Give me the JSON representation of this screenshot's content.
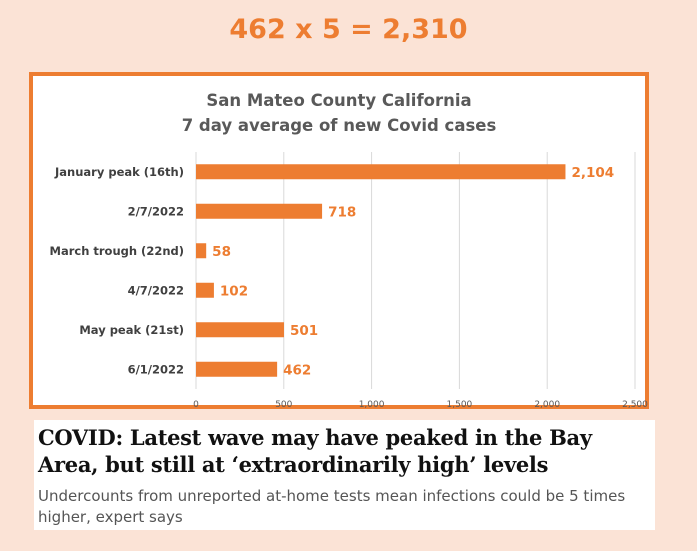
{
  "headline_equation": "462 x 5 = 2,310",
  "colors": {
    "accent": "#ed7d31",
    "background": "#fbe3d6",
    "grid": "#d9d9d9"
  },
  "chart_data": {
    "type": "bar",
    "orientation": "horizontal",
    "title": "San Mateo County California",
    "subtitle": "7 day average of new Covid cases",
    "categories": [
      "January peak (16th)",
      "2/7/2022",
      "March trough (22nd)",
      "4/7/2022",
      "May peak (21st)",
      "6/1/2022"
    ],
    "values": [
      2104,
      718,
      58,
      102,
      501,
      462
    ],
    "value_labels": [
      "2,104",
      "718",
      "58",
      "102",
      "501",
      "462"
    ],
    "xlim": [
      0,
      2500
    ],
    "x_ticks": [
      0,
      500,
      1000,
      1500,
      2000,
      2500
    ],
    "x_tick_labels": [
      "0",
      "500",
      "1,000",
      "1,500",
      "2,000",
      "2,500"
    ],
    "grid": true,
    "legend": "none"
  },
  "article": {
    "title": "COVID: Latest wave may have peaked in the Bay Area, but still at ‘extraordinarily high’ levels",
    "subtitle": "Undercounts from unreported at-home tests mean infections could be 5 times higher, expert says"
  }
}
